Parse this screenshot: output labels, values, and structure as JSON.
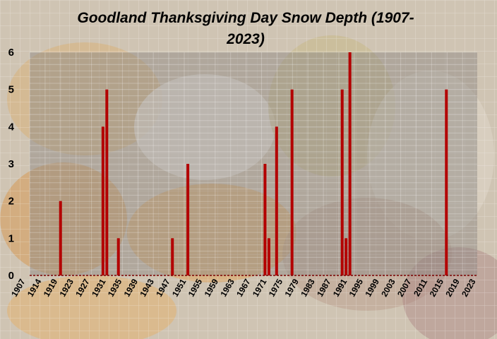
{
  "chart_data": {
    "type": "bar",
    "title_lines": [
      "Goodland Thanksgiving Day Snow Depth (1907-",
      "2023)"
    ],
    "xlabel": "",
    "ylabel": "",
    "ylim": [
      0,
      6
    ],
    "y_ticks": [
      0,
      1,
      2,
      3,
      4,
      5,
      6
    ],
    "x_range": [
      1907,
      2023
    ],
    "x_tick_labels": [
      "1907",
      "1914",
      "1919",
      "1923",
      "1927",
      "1931",
      "1935",
      "1939",
      "1943",
      "1947",
      "1951",
      "1955",
      "1959",
      "1963",
      "1967",
      "1971",
      "1975",
      "1979",
      "1983",
      "1987",
      "1991",
      "1995",
      "1999",
      "2003",
      "2007",
      "2011",
      "2015",
      "2019",
      "2023"
    ],
    "grid": true,
    "legend": "none",
    "bar_color": "#b30000",
    "plot_area_color": "#8a8580",
    "zero_line_color": "#7a0000",
    "series": [
      {
        "points": [
          {
            "x": 1915,
            "y": 2
          },
          {
            "x": 1926,
            "y": 4
          },
          {
            "x": 1927,
            "y": 5
          },
          {
            "x": 1930,
            "y": 1
          },
          {
            "x": 1944,
            "y": 1
          },
          {
            "x": 1948,
            "y": 3
          },
          {
            "x": 1968,
            "y": 3
          },
          {
            "x": 1969,
            "y": 1
          },
          {
            "x": 1971,
            "y": 4
          },
          {
            "x": 1975,
            "y": 5
          },
          {
            "x": 1988,
            "y": 5
          },
          {
            "x": 1989,
            "y": 1
          },
          {
            "x": 1990,
            "y": 6
          },
          {
            "x": 2015,
            "y": 5
          }
        ]
      }
    ]
  }
}
